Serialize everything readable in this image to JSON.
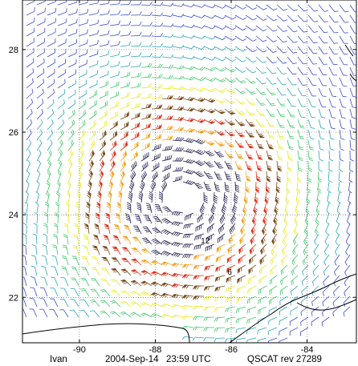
{
  "map": {
    "lon_range": [
      -91.5,
      -82.7
    ],
    "lat_range": [
      20.9,
      29.2
    ],
    "lon_ticks": [
      -90,
      -88,
      -86,
      -84
    ],
    "lat_ticks": [
      22,
      24,
      26,
      28
    ],
    "lon_tick_labels": [
      "-90",
      "-88",
      "-86",
      "-84"
    ],
    "lat_tick_labels": [
      "22",
      "24",
      "26",
      "28"
    ],
    "grid": true,
    "center": {
      "lon": -87.3,
      "lat": 24.4
    },
    "annotations": [
      {
        "text": "12",
        "lon": -86.8,
        "lat": 23.3
      },
      {
        "text": "6",
        "lon": -86.1,
        "lat": 22.55
      }
    ],
    "legend": null,
    "colors": {
      "frame": "#000000",
      "grid": "#555555",
      "coast": "#000000",
      "wind_scale": [
        "#1c1c4a",
        "#3b4bd6",
        "#2aa6b5",
        "#3ec76a",
        "#e8e81a",
        "#f6a21c",
        "#e0321a",
        "#7a4a18"
      ]
    }
  },
  "caption": {
    "storm": "Ivan",
    "date": "2004-Sep-14",
    "time": "23:59 UTC",
    "instrument": "QSCAT rev 27289"
  }
}
